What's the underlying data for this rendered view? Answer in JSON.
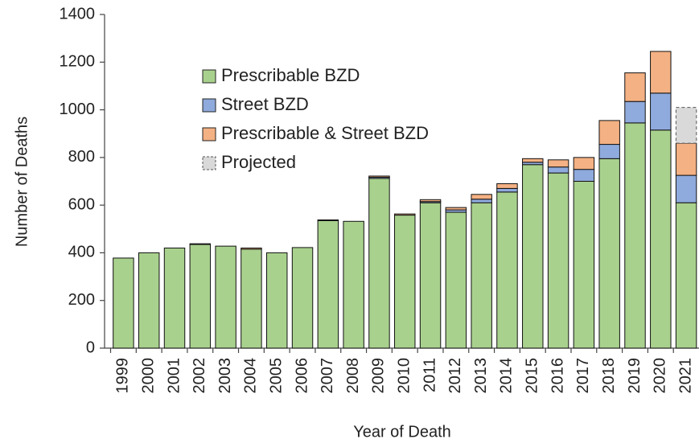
{
  "chart_data": {
    "type": "stacked_bar",
    "xlabel": "Year of Death",
    "ylabel": "Number of Deaths",
    "categories": [
      "1999",
      "2000",
      "2001",
      "2002",
      "2003",
      "2004",
      "2005",
      "2006",
      "2007",
      "2008",
      "2009",
      "2010",
      "2011",
      "2012",
      "2013",
      "2014",
      "2015",
      "2016",
      "2017",
      "2018",
      "2019",
      "2020",
      "2021"
    ],
    "series": [
      {
        "name": "Prescribable BZD",
        "color": "#a9d18e",
        "values": [
          378,
          400,
          420,
          435,
          428,
          415,
          400,
          422,
          535,
          532,
          712,
          558,
          610,
          570,
          610,
          655,
          770,
          735,
          700,
          795,
          945,
          915,
          610
        ]
      },
      {
        "name": "Street BZD",
        "color": "#8faadc",
        "values": [
          0,
          0,
          0,
          0,
          0,
          0,
          0,
          0,
          0,
          0,
          5,
          0,
          5,
          10,
          15,
          15,
          10,
          25,
          50,
          60,
          90,
          155,
          115
        ]
      },
      {
        "name": "Prescribable & Street BZD",
        "color": "#f4b183",
        "values": [
          0,
          0,
          0,
          3,
          0,
          5,
          0,
          0,
          3,
          0,
          5,
          5,
          8,
          10,
          20,
          20,
          15,
          30,
          50,
          100,
          120,
          175,
          135
        ]
      },
      {
        "name": "Projected",
        "color": "#d9d9d9",
        "dashed": true,
        "values": [
          null,
          null,
          null,
          null,
          null,
          null,
          null,
          null,
          null,
          null,
          null,
          null,
          null,
          null,
          null,
          null,
          null,
          null,
          null,
          null,
          null,
          null,
          150
        ]
      }
    ],
    "ylim": [
      0,
      1400
    ],
    "yticks": [
      0,
      200,
      400,
      600,
      800,
      1000,
      1200,
      1400
    ],
    "grid": false,
    "legend": "upper left"
  }
}
